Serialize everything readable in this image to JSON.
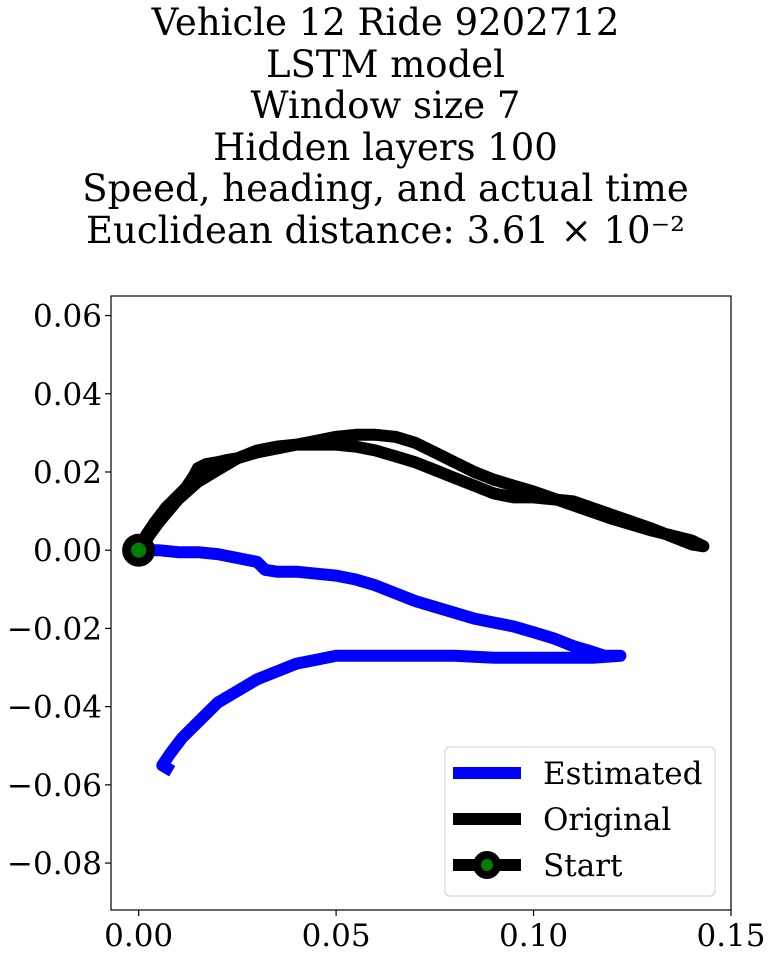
{
  "title_lines": [
    "Vehicle 12 Ride 9202712",
    "LSTM model",
    "Window size 7",
    "Hidden layers 100",
    "Speed, heading, and actual time",
    "Euclidean distance: 3.61 × 10⁻²"
  ],
  "chart_data": {
    "type": "line",
    "title": "Vehicle 12 Ride 9202712\nLSTM model\nWindow size 7\nHidden layers 100\nSpeed, heading, and actual time\nEuclidean distance: 3.61 × 10⁻²",
    "xlabel": "",
    "ylabel": "",
    "xlim": [
      -0.007,
      0.15
    ],
    "ylim": [
      -0.092,
      0.065
    ],
    "x_ticks": [
      0.0,
      0.05,
      0.1,
      0.15
    ],
    "x_tick_labels": [
      "0.00",
      "0.05",
      "0.10",
      "0.15"
    ],
    "y_ticks": [
      0.06,
      0.04,
      0.02,
      0.0,
      -0.02,
      -0.04,
      -0.06,
      -0.08
    ],
    "y_tick_labels": [
      "0.06",
      "0.04",
      "0.02",
      "0.00",
      "−0.02",
      "−0.04",
      "−0.06",
      "−0.08"
    ],
    "grid": false,
    "legend_position": "lower right",
    "series": [
      {
        "name": "Estimated",
        "color": "#0000ff",
        "points": [
          [
            0.0,
            0.0
          ],
          [
            0.005,
            0.0
          ],
          [
            0.01,
            -0.0005
          ],
          [
            0.015,
            -0.0005
          ],
          [
            0.02,
            -0.001
          ],
          [
            0.025,
            -0.002
          ],
          [
            0.03,
            -0.003
          ],
          [
            0.032,
            -0.005
          ],
          [
            0.035,
            -0.0055
          ],
          [
            0.04,
            -0.0055
          ],
          [
            0.045,
            -0.006
          ],
          [
            0.05,
            -0.0065
          ],
          [
            0.055,
            -0.0075
          ],
          [
            0.06,
            -0.009
          ],
          [
            0.065,
            -0.011
          ],
          [
            0.07,
            -0.013
          ],
          [
            0.075,
            -0.0145
          ],
          [
            0.08,
            -0.016
          ],
          [
            0.085,
            -0.0175
          ],
          [
            0.09,
            -0.0185
          ],
          [
            0.095,
            -0.0195
          ],
          [
            0.1,
            -0.021
          ],
          [
            0.105,
            -0.0225
          ],
          [
            0.11,
            -0.0245
          ],
          [
            0.115,
            -0.026
          ],
          [
            0.118,
            -0.027
          ],
          [
            0.122,
            -0.027
          ],
          [
            0.115,
            -0.0275
          ],
          [
            0.11,
            -0.0275
          ],
          [
            0.1,
            -0.0275
          ],
          [
            0.09,
            -0.0275
          ],
          [
            0.08,
            -0.027
          ],
          [
            0.07,
            -0.027
          ],
          [
            0.06,
            -0.027
          ],
          [
            0.05,
            -0.027
          ],
          [
            0.045,
            -0.028
          ],
          [
            0.04,
            -0.029
          ],
          [
            0.035,
            -0.031
          ],
          [
            0.03,
            -0.033
          ],
          [
            0.025,
            -0.036
          ],
          [
            0.02,
            -0.039
          ],
          [
            0.015,
            -0.044
          ],
          [
            0.011,
            -0.048
          ],
          [
            0.008,
            -0.052
          ],
          [
            0.006,
            -0.055
          ],
          [
            0.0085,
            -0.0565
          ]
        ]
      },
      {
        "name": "Original",
        "color": "#000000",
        "points": [
          [
            0.0,
            0.0
          ],
          [
            0.002,
            0.004
          ],
          [
            0.004,
            0.007
          ],
          [
            0.007,
            0.011
          ],
          [
            0.01,
            0.014
          ],
          [
            0.012,
            0.016
          ],
          [
            0.014,
            0.019
          ],
          [
            0.015,
            0.021
          ],
          [
            0.017,
            0.022
          ],
          [
            0.02,
            0.0225
          ],
          [
            0.022,
            0.023
          ],
          [
            0.025,
            0.0235
          ],
          [
            0.03,
            0.025
          ],
          [
            0.035,
            0.026
          ],
          [
            0.04,
            0.027
          ],
          [
            0.045,
            0.028
          ],
          [
            0.05,
            0.029
          ],
          [
            0.055,
            0.0295
          ],
          [
            0.06,
            0.0295
          ],
          [
            0.065,
            0.029
          ],
          [
            0.07,
            0.0275
          ],
          [
            0.075,
            0.025
          ],
          [
            0.08,
            0.0225
          ],
          [
            0.085,
            0.02
          ],
          [
            0.09,
            0.018
          ],
          [
            0.095,
            0.0165
          ],
          [
            0.1,
            0.015
          ],
          [
            0.11,
            0.0115
          ],
          [
            0.12,
            0.008
          ],
          [
            0.13,
            0.005
          ],
          [
            0.14,
            0.0025
          ],
          [
            0.143,
            0.001
          ],
          [
            0.14,
            0.0015
          ],
          [
            0.13,
            0.0055
          ],
          [
            0.12,
            0.009
          ],
          [
            0.11,
            0.0125
          ],
          [
            0.1,
            0.0135
          ],
          [
            0.095,
            0.0135
          ],
          [
            0.09,
            0.0145
          ],
          [
            0.085,
            0.0165
          ],
          [
            0.08,
            0.0185
          ],
          [
            0.075,
            0.0205
          ],
          [
            0.07,
            0.0225
          ],
          [
            0.065,
            0.024
          ],
          [
            0.06,
            0.0255
          ],
          [
            0.055,
            0.0265
          ],
          [
            0.05,
            0.027
          ],
          [
            0.045,
            0.027
          ],
          [
            0.04,
            0.027
          ],
          [
            0.035,
            0.0265
          ],
          [
            0.03,
            0.0255
          ],
          [
            0.025,
            0.0235
          ],
          [
            0.02,
            0.0205
          ],
          [
            0.015,
            0.0175
          ],
          [
            0.01,
            0.013
          ],
          [
            0.005,
            0.007
          ],
          [
            0.0,
            0.0
          ]
        ]
      }
    ],
    "start_marker": {
      "name": "Start",
      "x": 0.0,
      "y": 0.0,
      "edge_color": "#000000",
      "face_color": "#008000"
    }
  }
}
